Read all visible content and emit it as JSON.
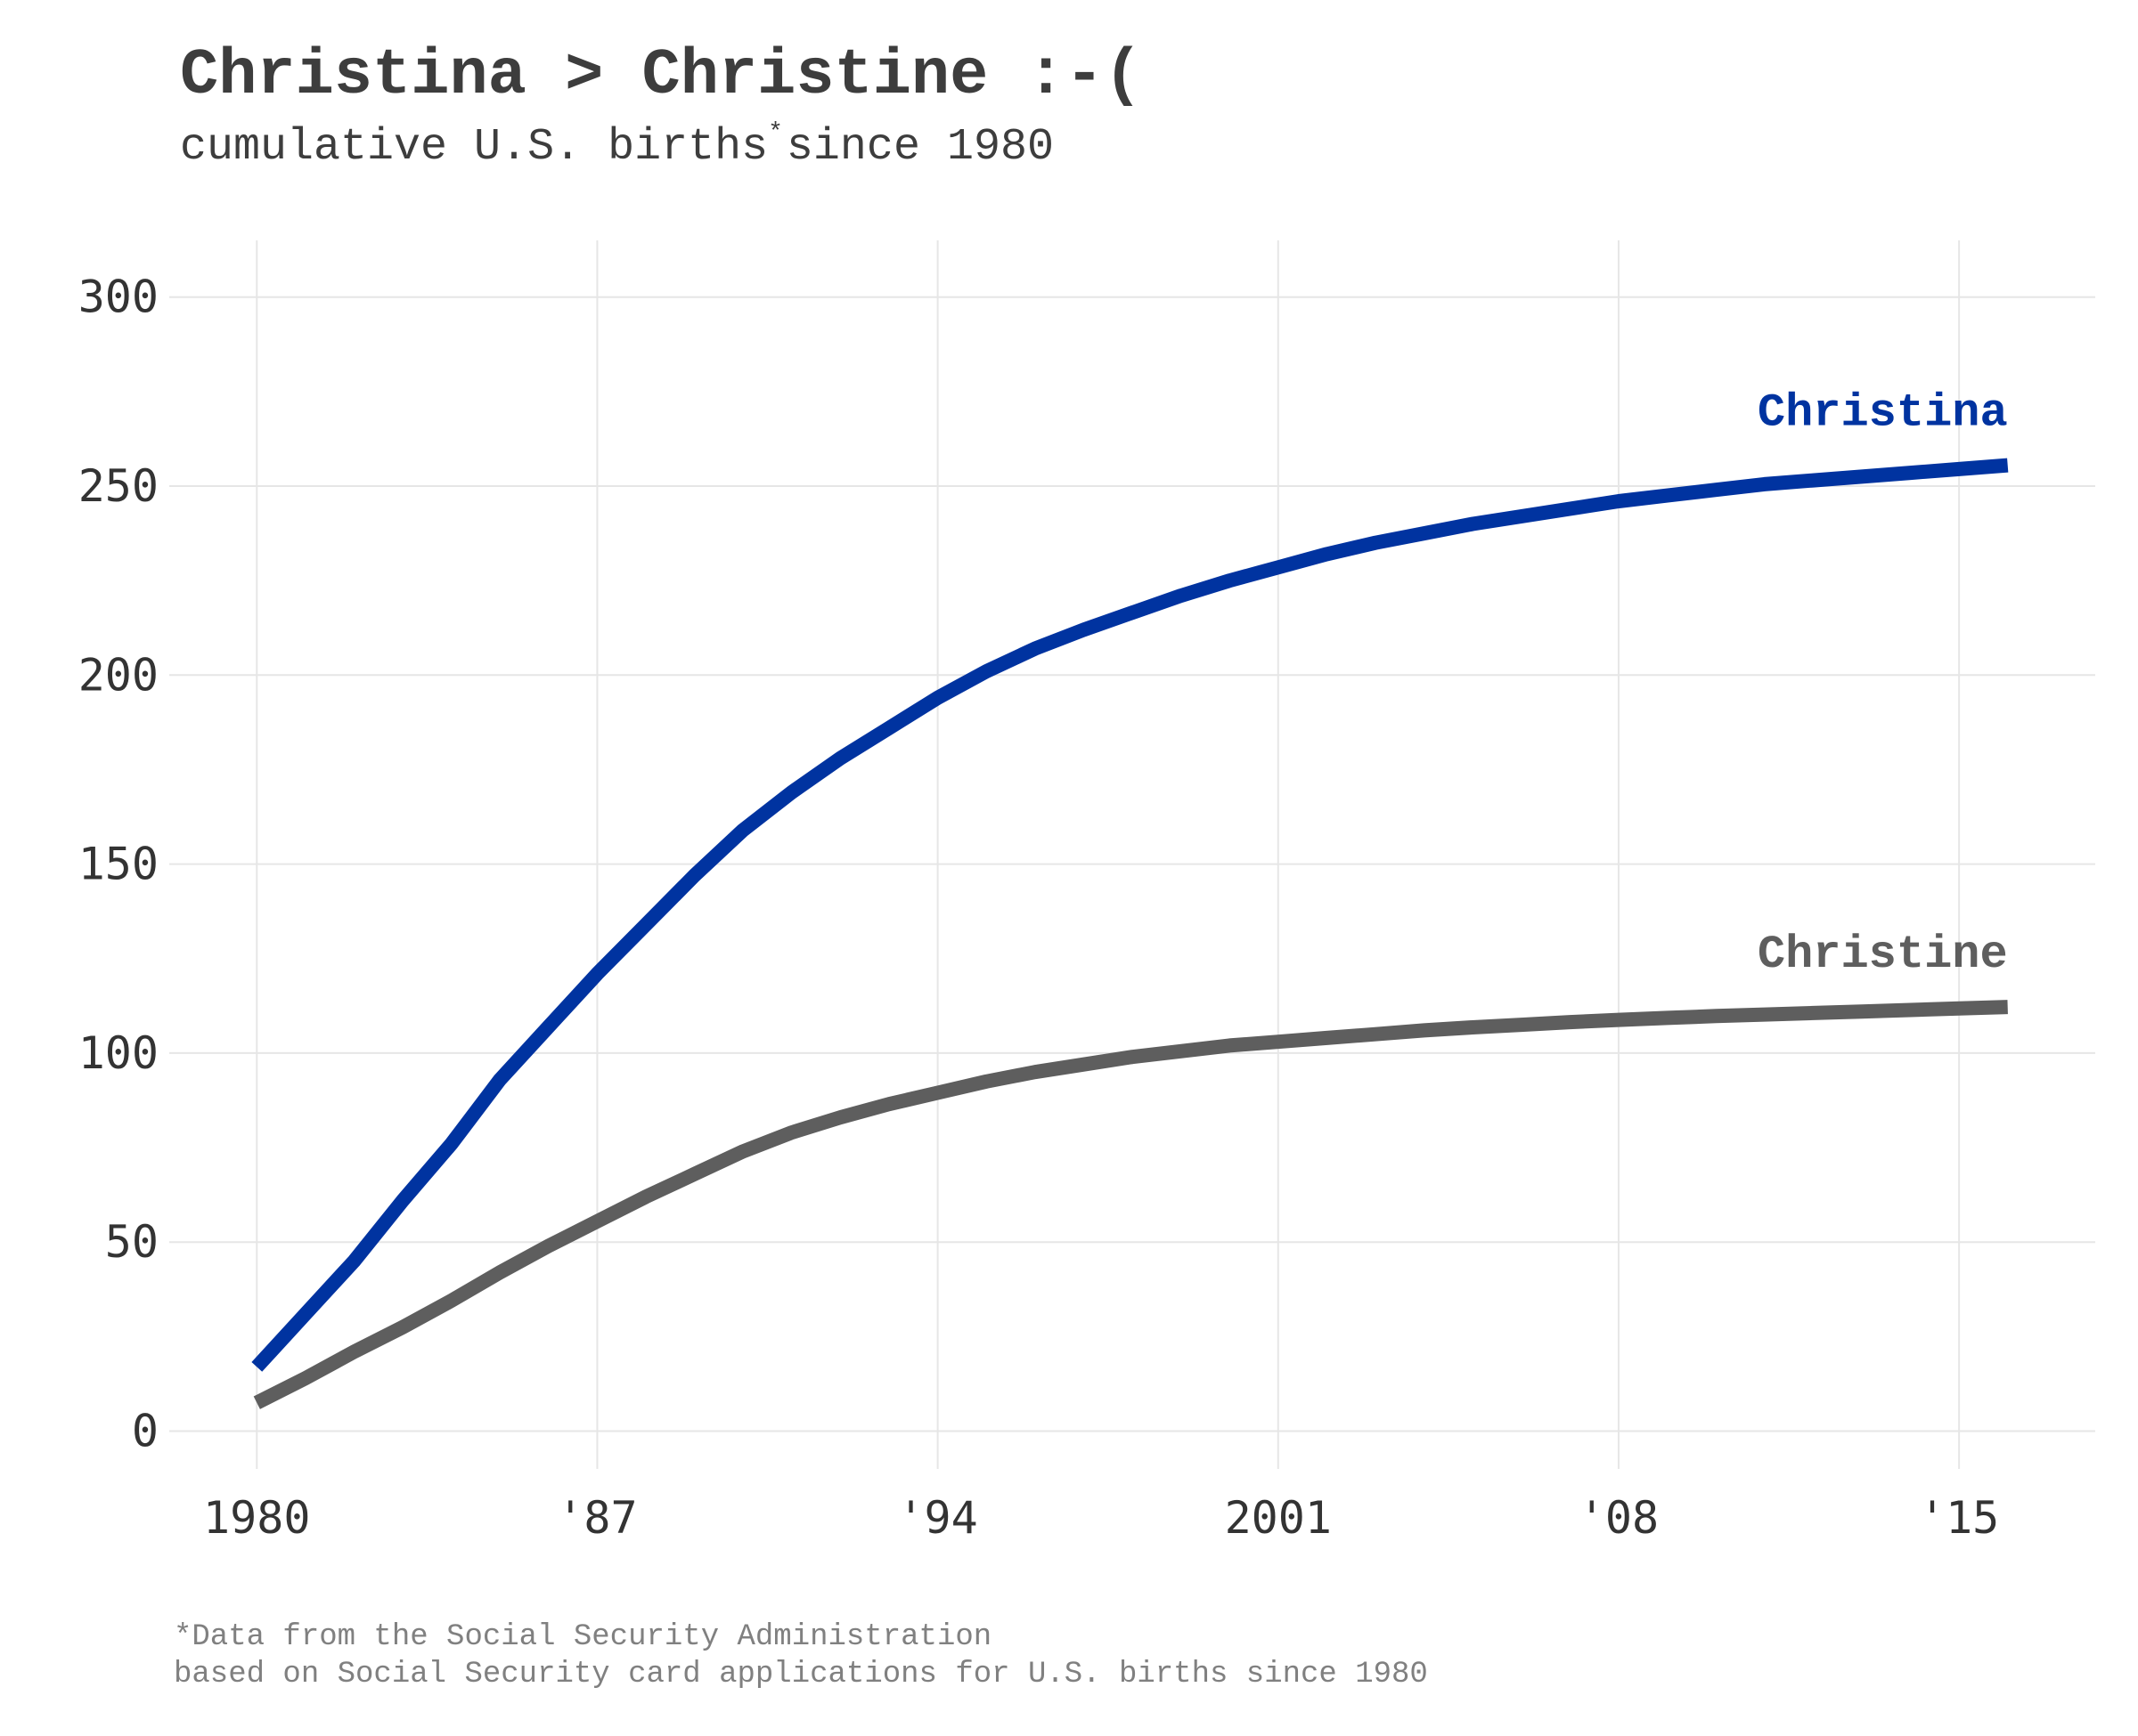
{
  "title": "Christina > Christine :-(",
  "subtitle": {
    "text_before": "cumulative U.S. births",
    "marker": "*",
    "text_after": "since 1980"
  },
  "footnote": {
    "line1": "*Data from the Social Security Administration",
    "line2": "based on Social Security card applications for U.S. births since 1980"
  },
  "chart_data": {
    "type": "line",
    "title": "Christina > Christine :-(",
    "subtitle": "cumulative U.S. births* since 1980",
    "xlabel": "",
    "ylabel": "",
    "xlim": [
      1978.2,
      2017.8
    ],
    "ylim": [
      -10,
      315
    ],
    "x_ticks": [
      1980,
      1987,
      1994,
      2001,
      2008,
      2015
    ],
    "x_tick_labels": [
      "1980",
      "'87",
      "'94",
      "2001",
      "'08",
      "'15"
    ],
    "y_ticks": [
      0,
      50,
      100,
      150,
      200,
      250,
      300
    ],
    "y_tick_labels": [
      "0",
      "50",
      "100",
      "150",
      "200",
      "250",
      "300"
    ],
    "grid": true,
    "legend": "direct labels at line ends",
    "x": [
      1980,
      1981,
      1982,
      1983,
      1984,
      1985,
      1986,
      1987,
      1988,
      1989,
      1990,
      1991,
      1992,
      1993,
      1994,
      1995,
      1996,
      1997,
      1998,
      1999,
      2000,
      2001,
      2002,
      2003,
      2004,
      2005,
      2006,
      2007,
      2008,
      2009,
      2010,
      2011,
      2012,
      2013,
      2014,
      2015,
      2016
    ],
    "series": [
      {
        "name": "Christina",
        "color": "#0033a0",
        "values": [
          17,
          31,
          45,
          61,
          76,
          93,
          107,
          121,
          134,
          147,
          159,
          169,
          178,
          186,
          194,
          201,
          207,
          212,
          216.5,
          221,
          225,
          228.5,
          232,
          235,
          237.5,
          240,
          242,
          244,
          246,
          247.5,
          249,
          250.5,
          251.5,
          252.5,
          253.5,
          254.5,
          255.5
        ]
      },
      {
        "name": "Christine",
        "color": "#5e5e5e",
        "values": [
          7.5,
          14,
          21,
          27.5,
          34.5,
          42,
          49,
          55.5,
          62,
          68,
          74,
          79,
          83,
          86.5,
          89.5,
          92.5,
          95,
          97,
          99,
          100.5,
          102,
          103,
          104,
          105,
          106,
          106.8,
          107.5,
          108.2,
          108.8,
          109.3,
          109.8,
          110.2,
          110.6,
          111,
          111.4,
          111.8,
          112.2
        ]
      }
    ]
  }
}
